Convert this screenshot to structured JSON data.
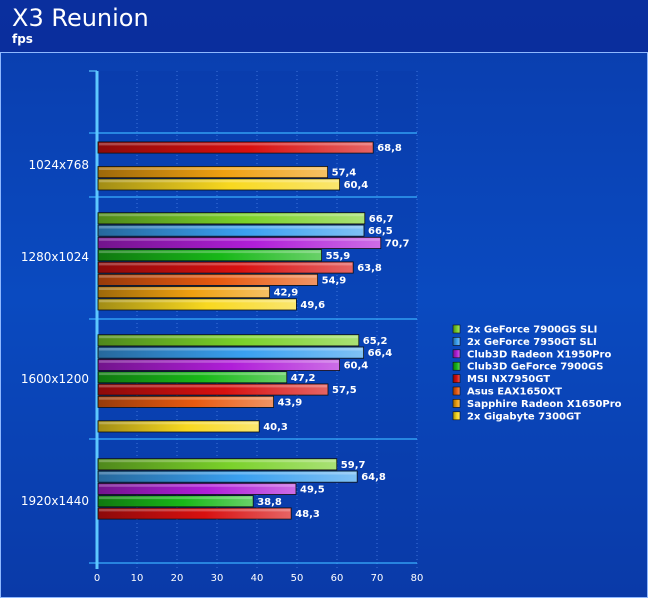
{
  "title": "X3 Reunion",
  "subtitle": "fps",
  "chart_data": {
    "type": "bar",
    "orientation": "horizontal",
    "categories": [
      "1024x768",
      "1280x1024",
      "1600x1200",
      "1920x1440"
    ],
    "xlim": [
      0,
      80
    ],
    "xticks": [
      0,
      10,
      20,
      30,
      40,
      50,
      60,
      70,
      80
    ],
    "grid": true,
    "legend_position": "right",
    "value_format": "decimal-comma",
    "series": [
      {
        "name": "2x GeForce 7900GS SLI",
        "color": "#7ad12a",
        "values": [
          null,
          66.7,
          65.2,
          59.7
        ]
      },
      {
        "name": "2x GeForce 7950GT SLI",
        "color": "#3aa0f0",
        "values": [
          null,
          66.5,
          66.4,
          64.8
        ]
      },
      {
        "name": "Club3D Radeon X1950Pro",
        "color": "#b01ed8",
        "values": [
          null,
          70.7,
          60.4,
          49.5
        ]
      },
      {
        "name": "Club3D GeForce 7900GS",
        "color": "#18b818",
        "values": [
          null,
          55.9,
          47.2,
          38.8
        ]
      },
      {
        "name": "MSI NX7950GT",
        "color": "#d81010",
        "values": [
          68.8,
          63.8,
          57.5,
          48.3
        ]
      },
      {
        "name": "Asus EAX1650XT",
        "color": "#e85a10",
        "values": [
          null,
          54.9,
          43.9,
          null
        ]
      },
      {
        "name": "Sapphire Radeon X1650Pro",
        "color": "#f0a010",
        "values": [
          57.4,
          42.9,
          null,
          null
        ]
      },
      {
        "name": "2x Gigabyte 7300GT",
        "color": "#f8d820",
        "values": [
          60.4,
          49.6,
          40.3,
          null
        ]
      }
    ]
  }
}
